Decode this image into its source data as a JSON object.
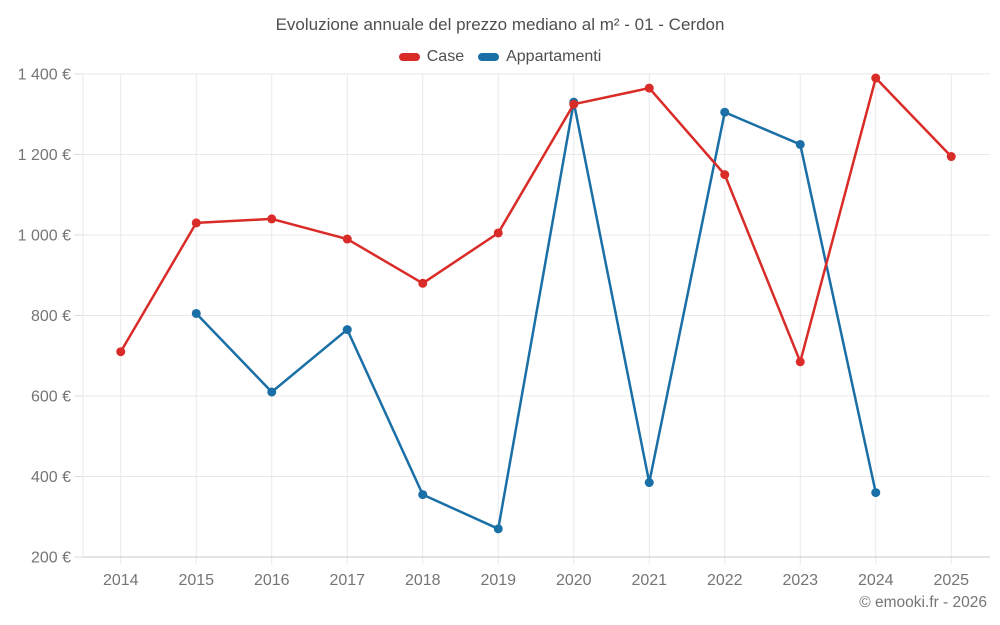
{
  "footer": {
    "text": "© emooki.fr - 2026"
  },
  "chart_data": {
    "type": "line",
    "title": "Evoluzione annuale del prezzo mediano al m² - 01 - Cerdon",
    "x": [
      "2014",
      "2015",
      "2016",
      "2017",
      "2018",
      "2019",
      "2020",
      "2021",
      "2022",
      "2023",
      "2024",
      "2025"
    ],
    "series": [
      {
        "name": "Case",
        "color": "#d92b27",
        "values": [
          710,
          1030,
          1040,
          990,
          880,
          1005,
          1325,
          1365,
          1150,
          685,
          1390,
          1195
        ]
      },
      {
        "name": "Appartamenti",
        "color": "#1a6fa6",
        "values": [
          null,
          805,
          610,
          765,
          355,
          270,
          1330,
          385,
          1305,
          1225,
          360,
          null
        ]
      }
    ],
    "xlabel": "",
    "ylabel": "",
    "ylim": [
      200,
      1400
    ],
    "y_ticks": [
      200,
      400,
      600,
      800,
      1000,
      1200,
      1400
    ],
    "y_tick_labels": [
      "200 €",
      "400 €",
      "600 €",
      "800 €",
      "1 000 €",
      "1 200 €",
      "1 400 €"
    ],
    "grid": true,
    "legend_position": "top",
    "colors": {
      "tick_label": "#757575",
      "title_text": "#4f4f4f",
      "gridline": "#e9e9e9",
      "axis_line": "#c8c8c8",
      "tick_mark": "#dcdcdc"
    }
  }
}
